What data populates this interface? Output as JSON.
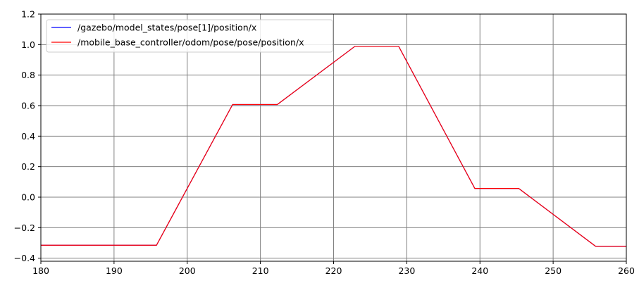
{
  "chart_data": {
    "type": "line",
    "title": "",
    "xlabel": "",
    "ylabel": "",
    "xlim": [
      180,
      260
    ],
    "ylim": [
      -0.42,
      1.2
    ],
    "grid": true,
    "grid_color": "#808080",
    "legend_position": "top-left",
    "x_ticks": [
      180,
      190,
      200,
      210,
      220,
      230,
      240,
      250,
      260
    ],
    "x_tick_labels": [
      "180",
      "190",
      "200",
      "210",
      "220",
      "230",
      "240",
      "250",
      "260"
    ],
    "y_ticks": [
      -0.4,
      -0.2,
      0.0,
      0.2,
      0.4,
      0.6,
      0.8,
      1.0,
      1.2
    ],
    "y_tick_labels": [
      "−0.4",
      "−0.2",
      "0.0",
      "0.2",
      "0.4",
      "0.6",
      "0.8",
      "1.0",
      "1.2"
    ],
    "series": [
      {
        "name": "/gazebo/model_states/pose[1]/position/x",
        "color": "#0000ff",
        "x": [
          180,
          195.8,
          206.2,
          212.3,
          222.9,
          228.9,
          239.3,
          245.3,
          255.8,
          260
        ],
        "y": [
          -0.315,
          -0.315,
          0.607,
          0.607,
          0.988,
          0.988,
          0.057,
          0.057,
          -0.322,
          -0.322
        ]
      },
      {
        "name": "/mobile_base_controller/odom/pose/pose/position/x",
        "color": "#ff0000",
        "x": [
          180,
          195.8,
          206.2,
          212.3,
          222.9,
          228.9,
          239.3,
          245.3,
          255.8,
          260
        ],
        "y": [
          -0.315,
          -0.315,
          0.607,
          0.607,
          0.988,
          0.988,
          0.057,
          0.057,
          -0.322,
          -0.322
        ]
      }
    ]
  }
}
